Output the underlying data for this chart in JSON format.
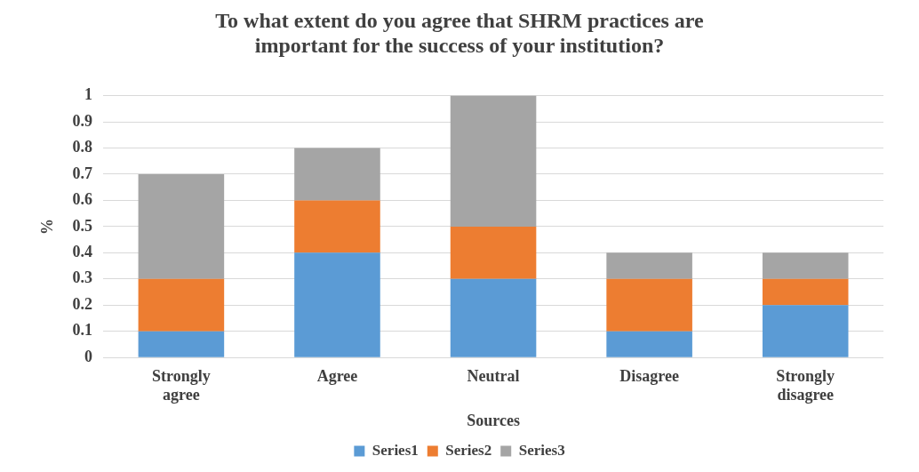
{
  "chart_data": {
    "type": "bar",
    "title": "To what extent do you agree that SHRM practices are important for the success of your institution?",
    "xlabel": "Sources",
    "ylabel": "%",
    "categories": [
      "Strongly agree",
      "Agree",
      "Neutral",
      "Disagree",
      "Strongly disagree"
    ],
    "stacked": true,
    "series": [
      {
        "name": "Series1",
        "color": "#5b9bd5",
        "values": [
          0.1,
          0.4,
          0.3,
          0.1,
          0.2
        ]
      },
      {
        "name": "Series2",
        "color": "#ed7d31",
        "values": [
          0.2,
          0.2,
          0.2,
          0.2,
          0.1
        ]
      },
      {
        "name": "Series3",
        "color": "#a5a5a5",
        "values": [
          0.4,
          0.2,
          0.5,
          0.1,
          0.1
        ]
      }
    ],
    "ylim": [
      0,
      1
    ],
    "yticks": [
      0,
      0.1,
      0.2,
      0.3,
      0.4,
      0.5,
      0.6,
      0.7,
      0.8,
      0.9,
      1
    ],
    "grid": "y",
    "legend": "bottom"
  }
}
